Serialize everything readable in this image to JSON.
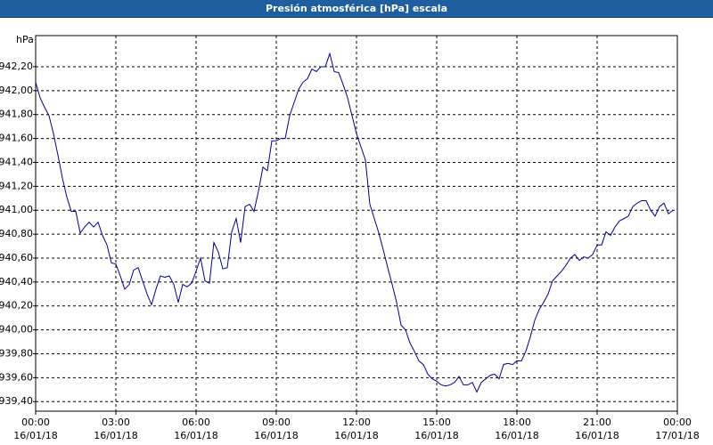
{
  "chart_data": {
    "type": "line",
    "title": "Presión atmosférica [hPa] escala",
    "ylabel": "hPa",
    "x": [
      0,
      10,
      20,
      30,
      40,
      50,
      60,
      70,
      80,
      90,
      100,
      110,
      120,
      130,
      140,
      150,
      160,
      170,
      180,
      190,
      200,
      210,
      220,
      230,
      240,
      250,
      260,
      270,
      280,
      290,
      300,
      310,
      320,
      330,
      340,
      350,
      360,
      370,
      380,
      390,
      400,
      410,
      420,
      430,
      440,
      450,
      460,
      470,
      480,
      490,
      500,
      510,
      520,
      530,
      540,
      550,
      560,
      570,
      580,
      590,
      600,
      610,
      620,
      630,
      640,
      650,
      660,
      670,
      680,
      690,
      700,
      710,
      720,
      730,
      740,
      750,
      760,
      770,
      780,
      790,
      800,
      810,
      820,
      830,
      840,
      850,
      860,
      870,
      880,
      890,
      900,
      910,
      920,
      930,
      940,
      950,
      960,
      970,
      980,
      990,
      1000,
      1010,
      1020,
      1030,
      1040,
      1050,
      1060,
      1070,
      1080,
      1090,
      1100,
      1110,
      1120,
      1130,
      1140,
      1150,
      1160,
      1170,
      1180,
      1190,
      1200,
      1210,
      1220,
      1230,
      1240,
      1250,
      1260,
      1270,
      1280,
      1290,
      1300,
      1310,
      1320,
      1330,
      1340,
      1350,
      1360,
      1370,
      1380,
      1390,
      1400,
      1410,
      1420,
      1430
    ],
    "series": [
      {
        "name": "Presión",
        "color": "#00008b",
        "values": [
          942.07,
          941.94,
          941.86,
          941.79,
          941.64,
          941.46,
          941.27,
          941.11,
          940.99,
          940.99,
          940.81,
          940.86,
          940.9,
          940.86,
          940.9,
          940.79,
          940.71,
          940.56,
          940.55,
          940.45,
          940.34,
          940.38,
          940.5,
          940.52,
          940.41,
          940.3,
          940.21,
          940.34,
          940.45,
          940.44,
          940.45,
          940.38,
          940.23,
          940.38,
          940.36,
          940.39,
          940.49,
          940.6,
          940.41,
          940.39,
          940.73,
          940.65,
          940.51,
          940.52,
          940.82,
          940.93,
          940.73,
          941.03,
          941.05,
          940.99,
          941.16,
          941.36,
          941.33,
          941.58,
          941.58,
          941.6,
          941.6,
          941.79,
          941.9,
          942.01,
          942.07,
          942.1,
          942.18,
          942.16,
          942.2,
          942.2,
          942.31,
          942.16,
          942.15,
          942.05,
          941.94,
          941.79,
          941.64,
          941.53,
          941.42,
          941.05,
          940.93,
          940.81,
          940.67,
          940.52,
          940.38,
          940.23,
          940.04,
          940.0,
          939.89,
          939.82,
          939.74,
          939.71,
          939.63,
          939.59,
          939.57,
          939.54,
          939.53,
          939.54,
          939.56,
          939.61,
          939.54,
          939.54,
          939.56,
          939.48,
          939.56,
          939.59,
          939.62,
          939.63,
          939.59,
          939.71,
          939.72,
          939.71,
          939.74,
          939.74,
          939.82,
          939.94,
          940.08,
          940.17,
          940.23,
          940.3,
          940.41,
          940.45,
          940.49,
          940.54,
          940.6,
          940.63,
          940.58,
          940.61,
          940.6,
          940.63,
          940.71,
          940.71,
          940.82,
          940.79,
          940.86,
          940.91,
          940.93,
          940.95,
          941.03,
          941.06,
          941.08,
          941.08,
          941.0,
          940.95,
          941.03,
          941.06,
          940.97,
          941.0
        ]
      }
    ],
    "xlim": [
      0,
      1440
    ],
    "xticks": [
      {
        "value": 0,
        "label": "00:00",
        "date": "16/01/18"
      },
      {
        "value": 180,
        "label": "03:00",
        "date": "16/01/18"
      },
      {
        "value": 360,
        "label": "06:00",
        "date": "16/01/18"
      },
      {
        "value": 540,
        "label": "09:00",
        "date": "16/01/18"
      },
      {
        "value": 720,
        "label": "12:00",
        "date": "16/01/18"
      },
      {
        "value": 900,
        "label": "15:00",
        "date": "16/01/18"
      },
      {
        "value": 1080,
        "label": "18:00",
        "date": "16/01/18"
      },
      {
        "value": 1260,
        "label": "21:00",
        "date": "16/01/18"
      },
      {
        "value": 1440,
        "label": "00:00",
        "date": "17/01/18"
      }
    ],
    "ylim": [
      939.32,
      942.46
    ],
    "yticks": [
      {
        "value": 939.4,
        "label": "939,40"
      },
      {
        "value": 939.6,
        "label": "939,60"
      },
      {
        "value": 939.8,
        "label": "939,80"
      },
      {
        "value": 940.0,
        "label": "940,00"
      },
      {
        "value": 940.2,
        "label": "940,20"
      },
      {
        "value": 940.4,
        "label": "940,40"
      },
      {
        "value": 940.6,
        "label": "940,60"
      },
      {
        "value": 940.8,
        "label": "940,80"
      },
      {
        "value": 941.0,
        "label": "941,00"
      },
      {
        "value": 941.2,
        "label": "941,20"
      },
      {
        "value": 941.4,
        "label": "941,40"
      },
      {
        "value": 941.6,
        "label": "941,60"
      },
      {
        "value": 941.8,
        "label": "941,80"
      },
      {
        "value": 942.0,
        "label": "942,00"
      },
      {
        "value": 942.2,
        "label": "942,20"
      }
    ],
    "grid": true
  }
}
